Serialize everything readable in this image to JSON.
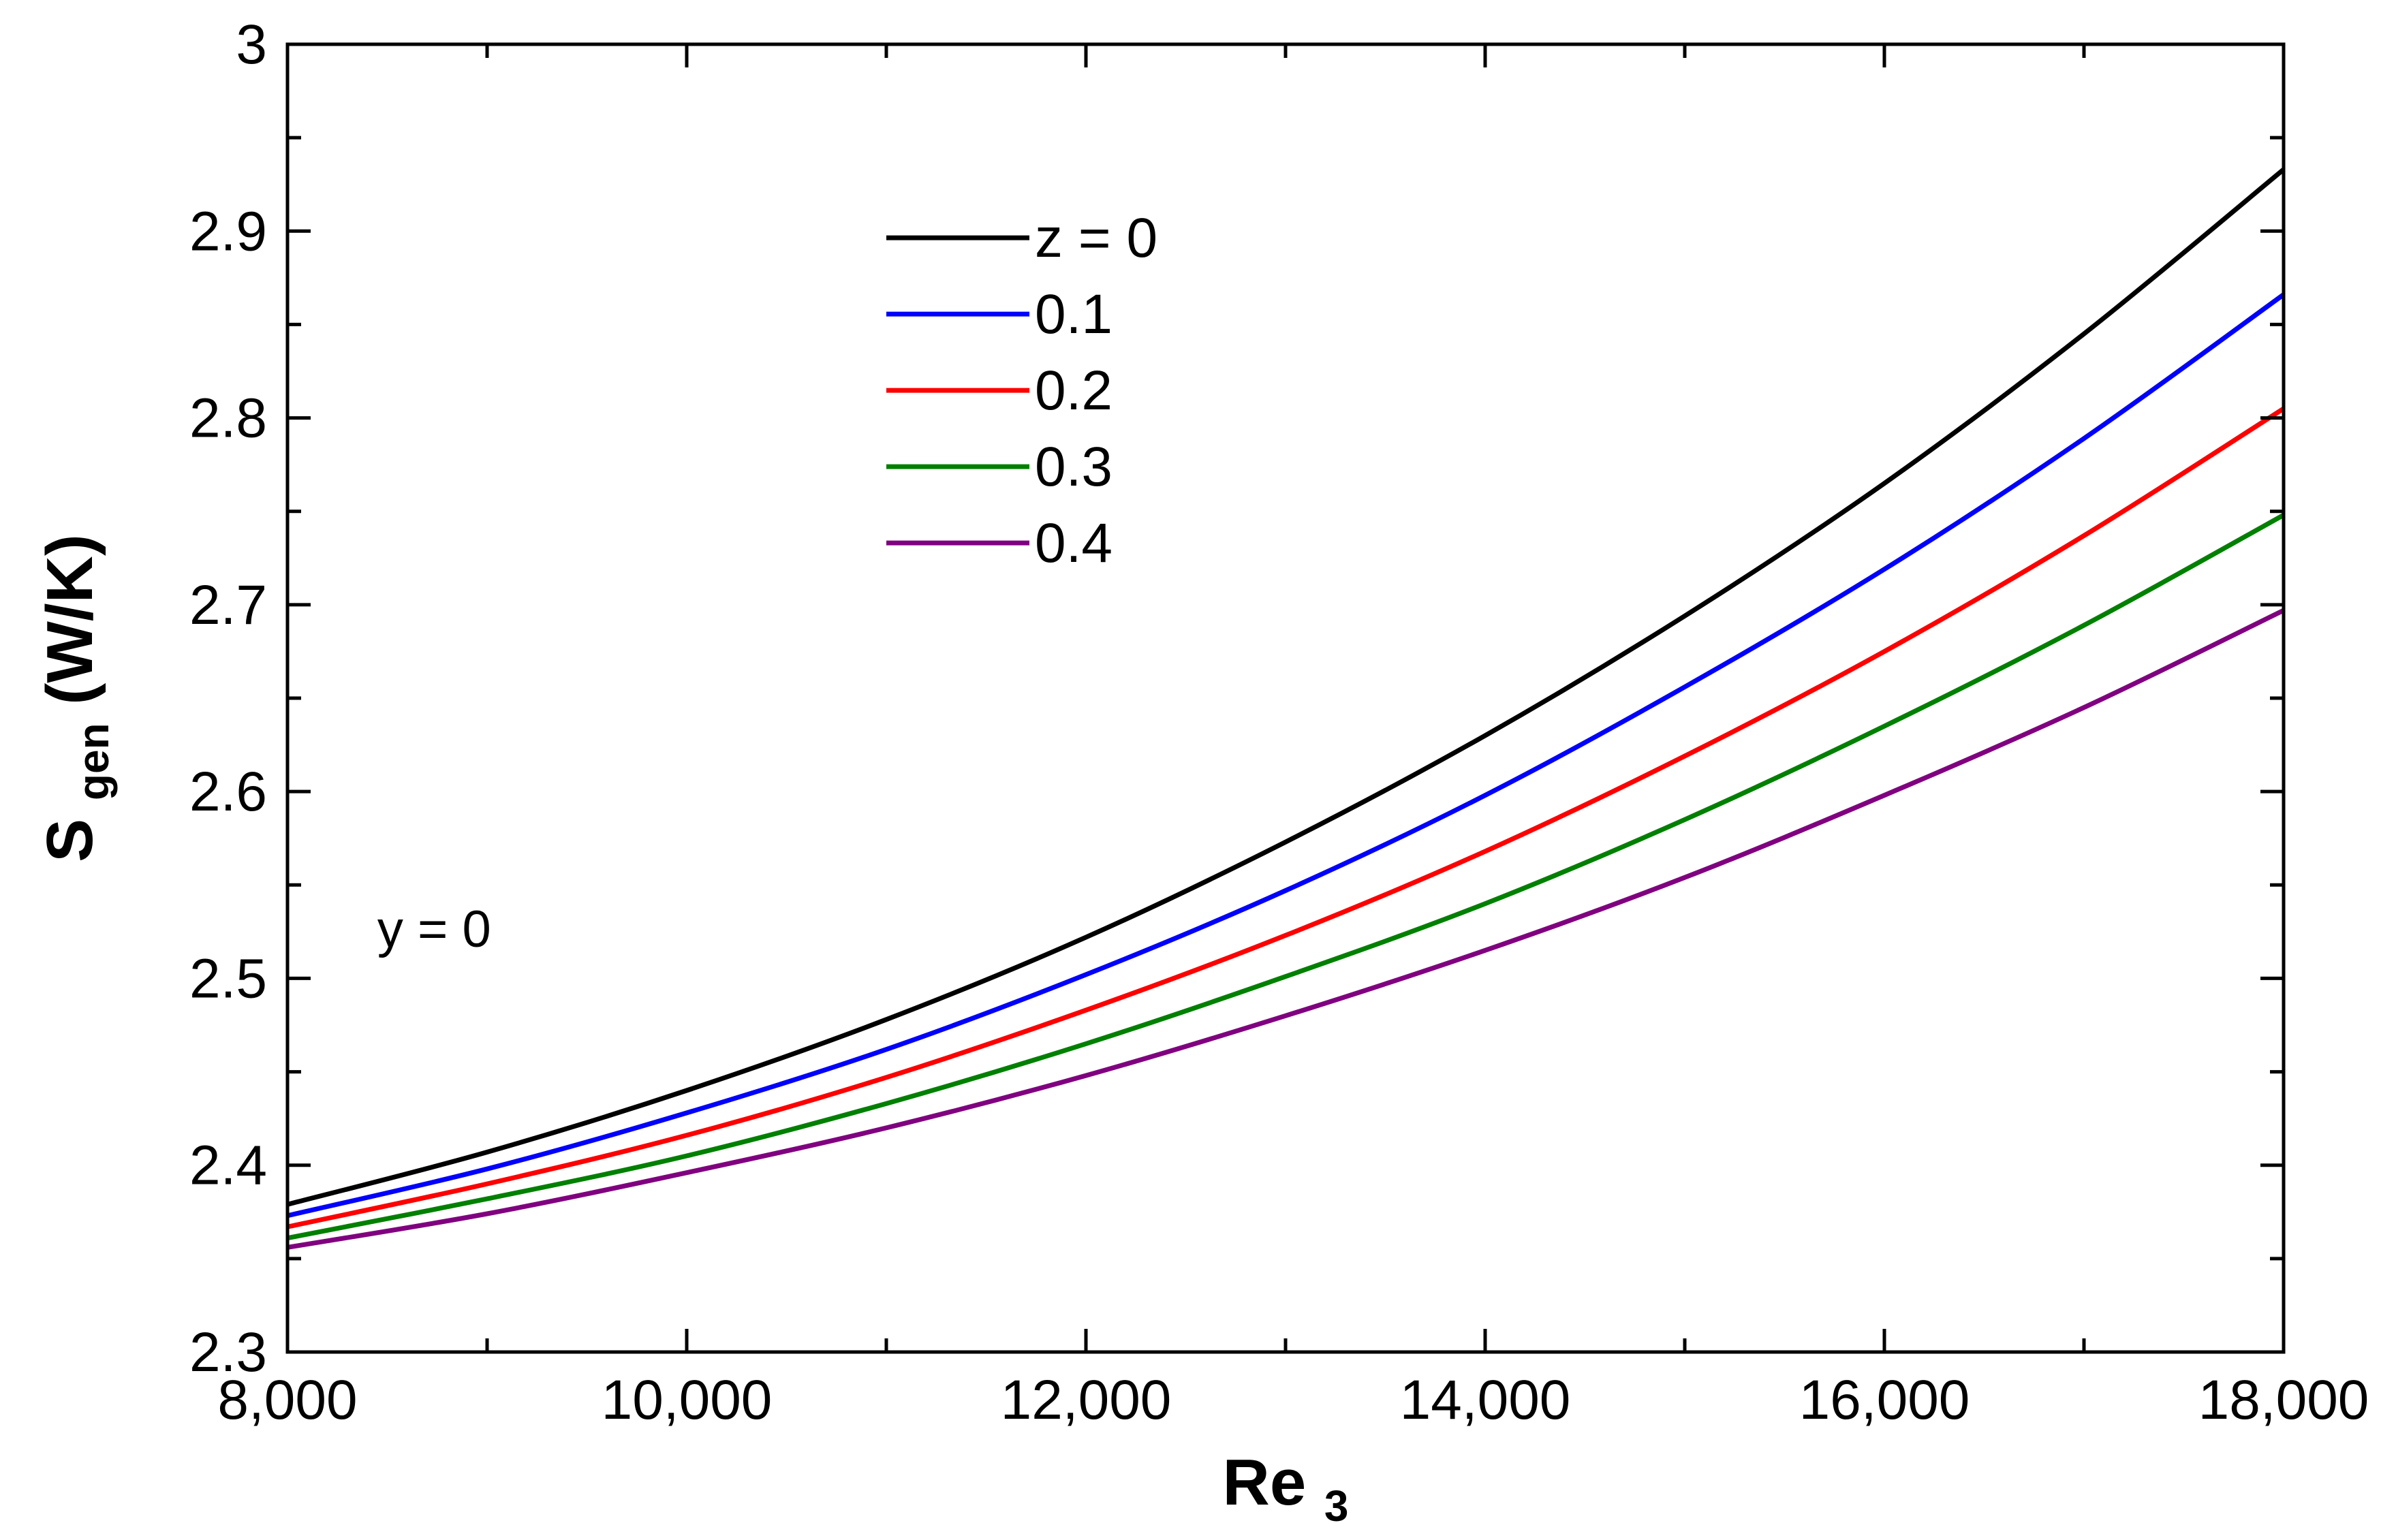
{
  "chart_data": {
    "type": "line",
    "title": "",
    "xlabel": {
      "main": "Re",
      "subscript": "3"
    },
    "ylabel": {
      "main": "S",
      "subscript": "gen",
      "suffix": " (W/K)"
    },
    "xlim": [
      8000,
      18000
    ],
    "ylim": [
      2.3,
      3.0
    ],
    "x_ticks": [
      8000,
      10000,
      12000,
      14000,
      16000,
      18000
    ],
    "x_tick_labels": [
      "8,000",
      "10,000",
      "12,000",
      "14,000",
      "16,000",
      "18,000"
    ],
    "y_ticks": [
      2.3,
      2.4,
      2.5,
      2.6,
      2.7,
      2.8,
      2.9,
      3.0
    ],
    "y_tick_labels": [
      "2.3",
      "2.4",
      "2.5",
      "2.6",
      "2.7",
      "2.8",
      "2.9",
      "3"
    ],
    "x_minor_step": 1000,
    "y_minor_step": 0.05,
    "grid": false,
    "legend_position": "upper-center",
    "annotation": "y = 0",
    "x": [
      8000,
      9000,
      10000,
      11000,
      12000,
      13000,
      14000,
      15000,
      16000,
      17000,
      18000
    ],
    "series": [
      {
        "name": "z = 0",
        "color": "#000000",
        "values": [
          2.379,
          2.407,
          2.44,
          2.478,
          2.522,
          2.573,
          2.63,
          2.694,
          2.765,
          2.845,
          2.933
        ]
      },
      {
        "name": "0.1",
        "color": "#0000ff",
        "values": [
          2.373,
          2.398,
          2.428,
          2.462,
          2.502,
          2.547,
          2.598,
          2.656,
          2.719,
          2.789,
          2.866
        ]
      },
      {
        "name": "0.2",
        "color": "#ff0000",
        "values": [
          2.367,
          2.39,
          2.416,
          2.447,
          2.483,
          2.523,
          2.568,
          2.619,
          2.675,
          2.737,
          2.805
        ]
      },
      {
        "name": "0.3",
        "color": "#008000",
        "values": [
          2.361,
          2.382,
          2.405,
          2.433,
          2.465,
          2.501,
          2.54,
          2.585,
          2.635,
          2.689,
          2.748
        ]
      },
      {
        "name": "0.4",
        "color": "#800080",
        "values": [
          2.356,
          2.374,
          2.396,
          2.42,
          2.448,
          2.48,
          2.515,
          2.554,
          2.598,
          2.645,
          2.697
        ]
      }
    ]
  }
}
